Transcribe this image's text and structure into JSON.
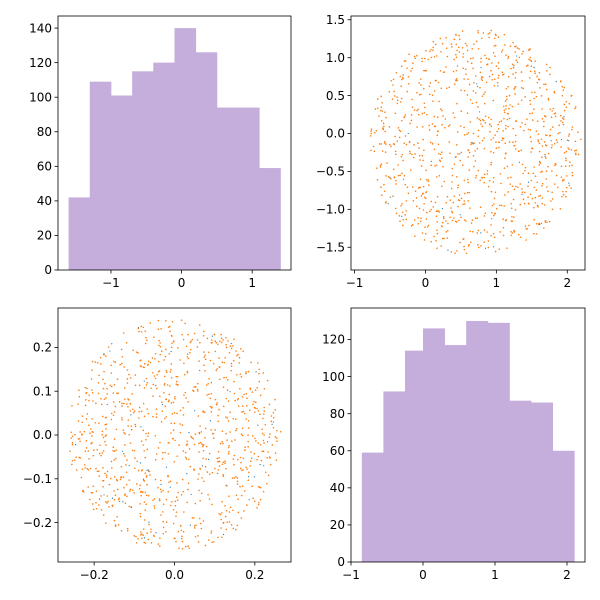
{
  "figure": {
    "background": "#ffffff",
    "hist_color": "#c5aedb",
    "point_color": "#ff7f0e",
    "faint_point_color": "#1f77b4"
  },
  "chart_data": [
    {
      "id": "top-left",
      "type": "bar",
      "title": "",
      "xlabel": "",
      "ylabel": "",
      "bin_edges": [
        -1.6,
        -1.3,
        -1.0,
        -0.7,
        -0.4,
        -0.1,
        0.2,
        0.5,
        0.8,
        1.1,
        1.4
      ],
      "values": [
        42,
        109,
        101,
        115,
        120,
        140,
        126,
        94,
        94,
        59
      ],
      "xlim": [
        -1.75,
        1.55
      ],
      "ylim": [
        0,
        147
      ],
      "xticks": [
        -1,
        0,
        1
      ],
      "xtick_labels": [
        "−1",
        "0",
        "1"
      ],
      "yticks": [
        0,
        20,
        40,
        60,
        80,
        100,
        120,
        140
      ],
      "ytick_labels": [
        "0",
        "20",
        "40",
        "60",
        "80",
        "100",
        "120",
        "140"
      ]
    },
    {
      "id": "top-right",
      "type": "scatter",
      "title": "",
      "xlabel": "",
      "ylabel": "",
      "description": "about 1000 uniformly scattered points filling a disk",
      "center": [
        0.7,
        -0.12
      ],
      "radius": 1.5,
      "point_count": 1000,
      "xlim": [
        -1.05,
        2.25
      ],
      "ylim": [
        -1.8,
        1.55
      ],
      "xticks": [
        -1,
        0,
        1,
        2
      ],
      "xtick_labels": [
        "−1",
        "0",
        "1",
        "2"
      ],
      "yticks": [
        -1.5,
        -1.0,
        -0.5,
        0.0,
        0.5,
        1.0,
        1.5
      ],
      "ytick_labels": [
        "−1.5",
        "−1.0",
        "−0.5",
        "0.0",
        "0.5",
        "1.0",
        "1.5"
      ]
    },
    {
      "id": "bottom-left",
      "type": "scatter",
      "title": "",
      "xlabel": "",
      "ylabel": "",
      "description": "about 1000 uniformly scattered points filling a disk",
      "center": [
        0.0,
        0.0
      ],
      "radius": 0.265,
      "point_count": 1000,
      "xlim": [
        -0.29,
        0.29
      ],
      "ylim": [
        -0.29,
        0.29
      ],
      "xticks": [
        -0.2,
        0.0,
        0.2
      ],
      "xtick_labels": [
        "−0.2",
        "0.0",
        "0.2"
      ],
      "yticks": [
        -0.2,
        -0.1,
        0.0,
        0.1,
        0.2
      ],
      "ytick_labels": [
        "−0.2",
        "−0.1",
        "0.0",
        "0.1",
        "0.2"
      ]
    },
    {
      "id": "bottom-right",
      "type": "bar",
      "title": "",
      "xlabel": "",
      "ylabel": "",
      "bin_edges": [
        -0.85,
        -0.55,
        -0.25,
        0.0,
        0.3,
        0.6,
        0.9,
        1.2,
        1.5,
        1.8,
        2.1
      ],
      "values": [
        59,
        92,
        114,
        126,
        117,
        130,
        129,
        87,
        86,
        60
      ],
      "xlim": [
        -1.0,
        2.25
      ],
      "ylim": [
        0,
        137
      ],
      "xticks": [
        -1,
        0,
        1,
        2
      ],
      "xtick_labels": [
        "−1",
        "0",
        "1",
        "2"
      ],
      "yticks": [
        0,
        20,
        40,
        60,
        80,
        100,
        120
      ],
      "ytick_labels": [
        "0",
        "20",
        "40",
        "60",
        "80",
        "100",
        "120"
      ]
    }
  ]
}
